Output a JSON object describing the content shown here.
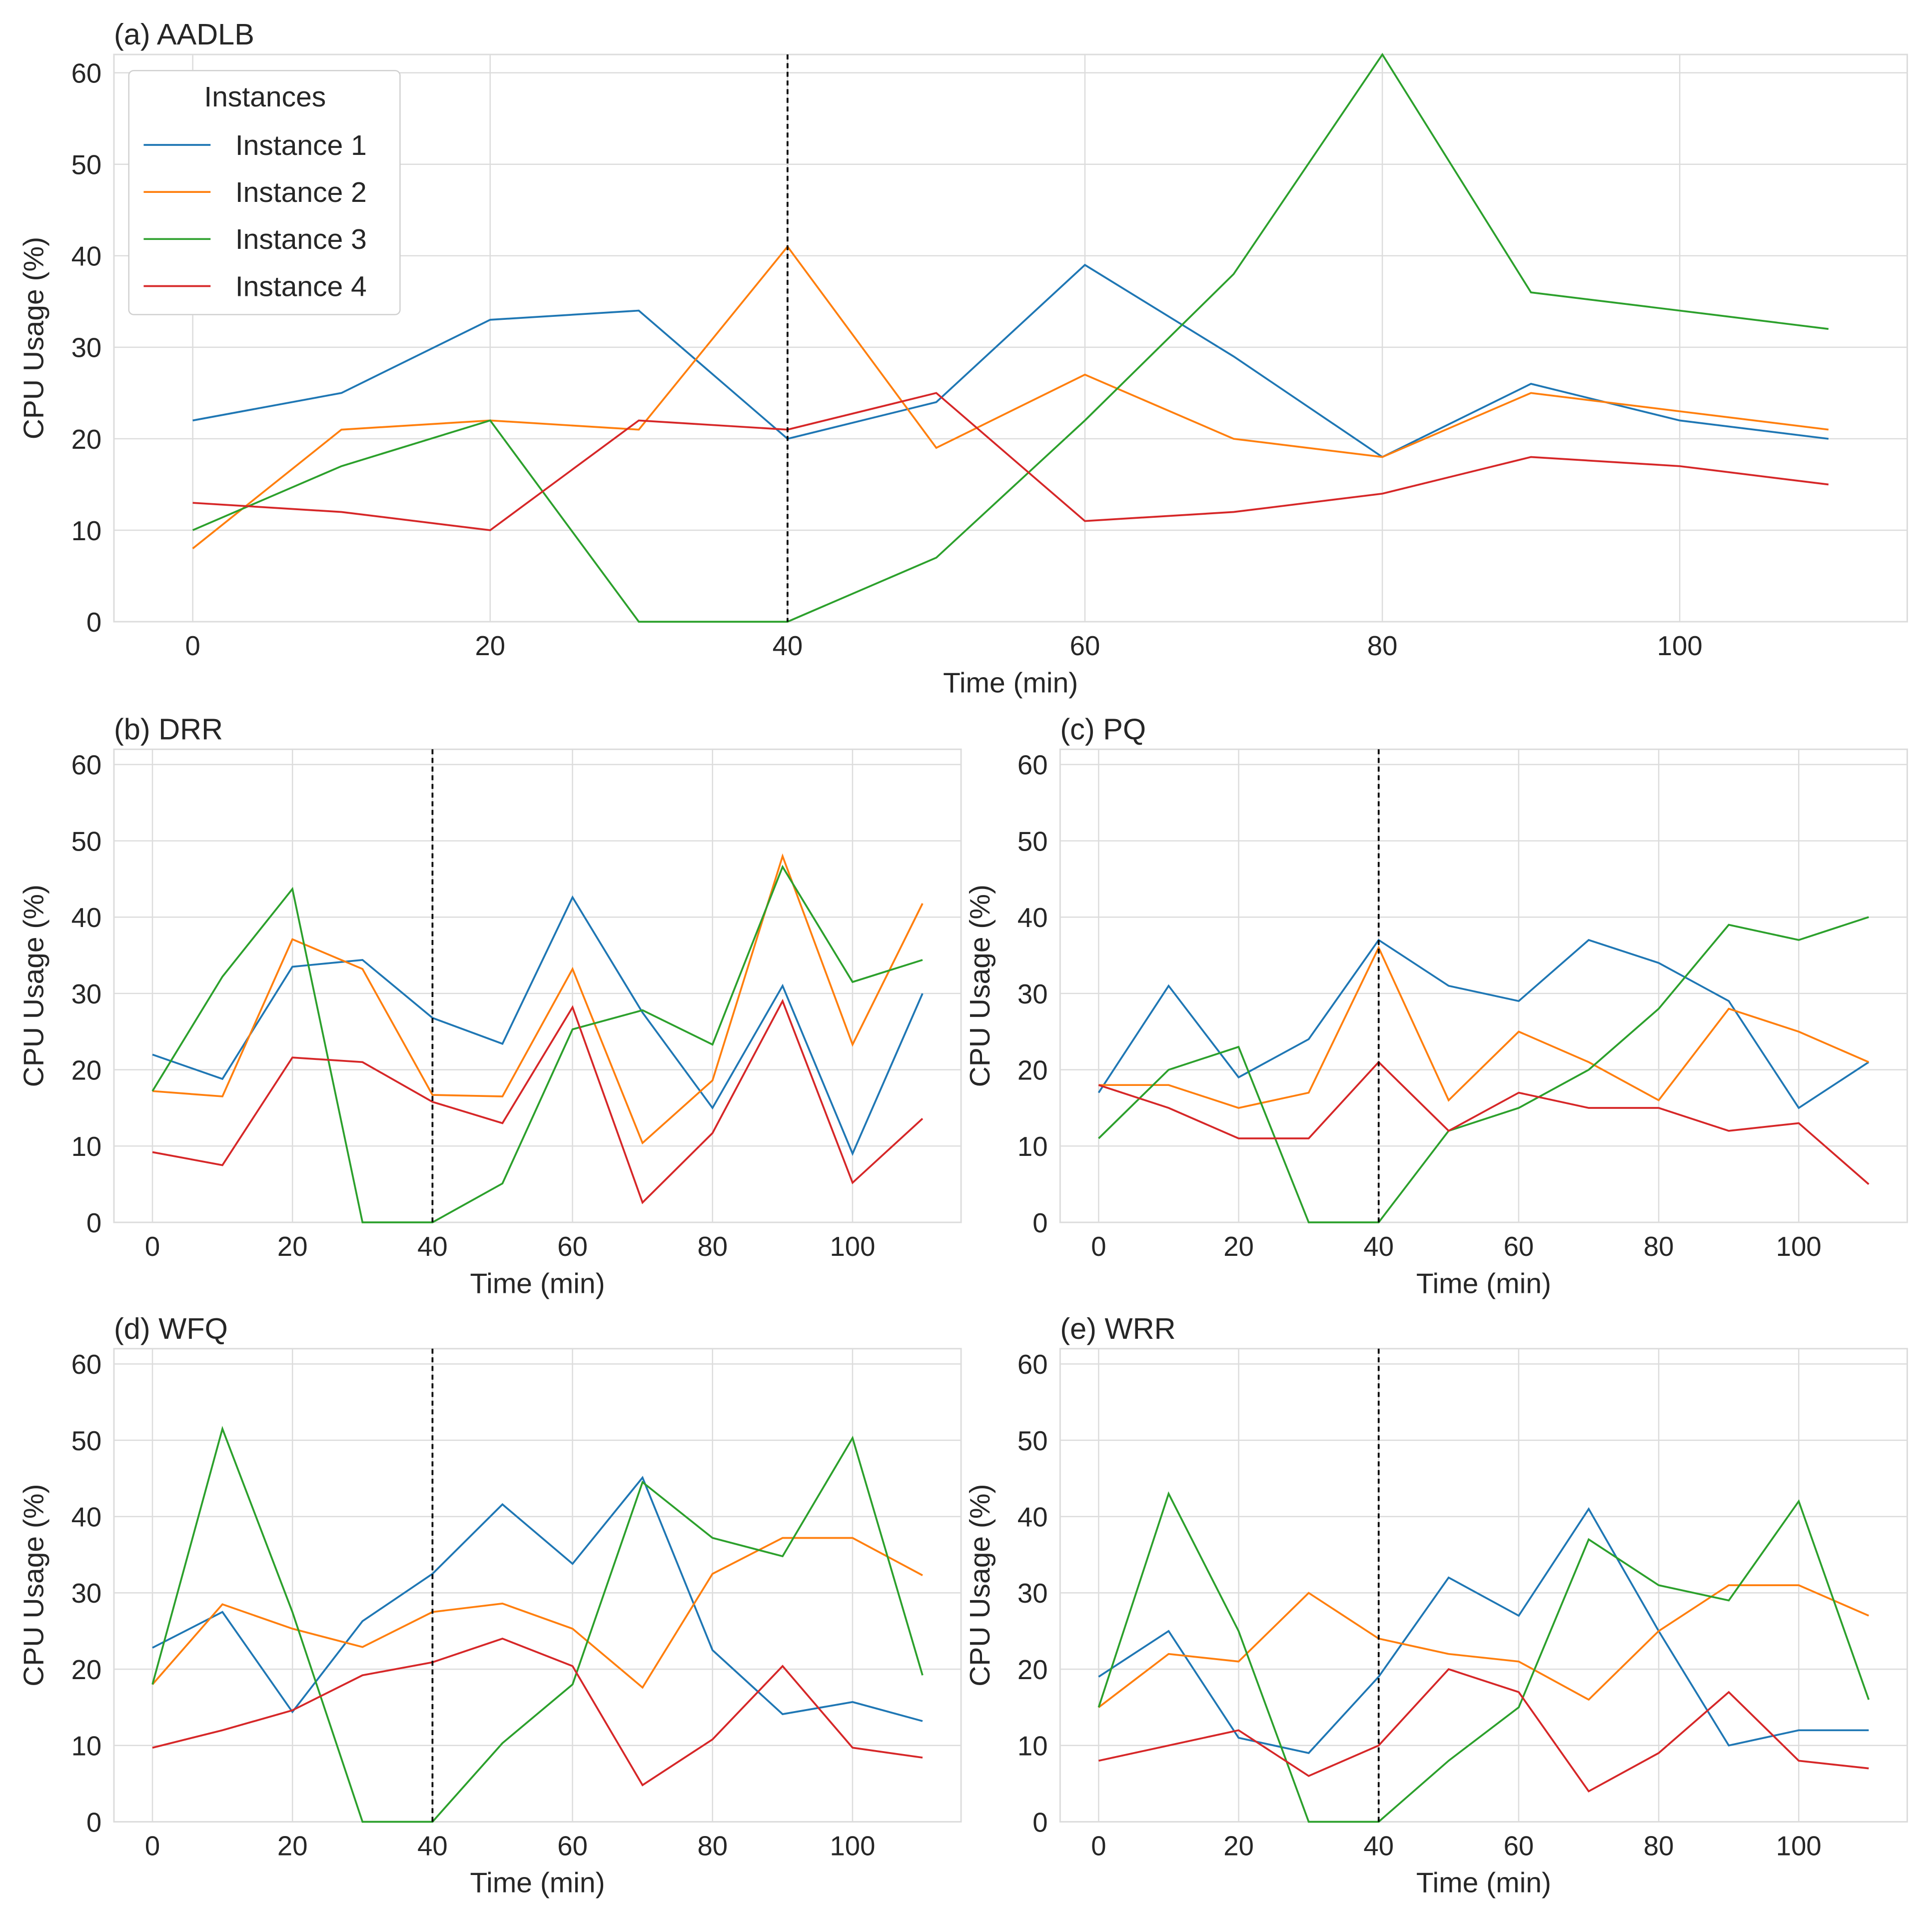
{
  "colors": {
    "Instance 1": "#1f77b4",
    "Instance 2": "#ff7f0e",
    "Instance 3": "#2ca02c",
    "Instance 4": "#d62728",
    "grid": "#dcdcdc",
    "marker": "#000000"
  },
  "legend": {
    "title": "Instances",
    "placement": "top-left",
    "entries": [
      "Instance 1",
      "Instance 2",
      "Instance 3",
      "Instance 4"
    ]
  },
  "chart_data": [
    {
      "type": "line",
      "title": "(a) AADLB",
      "xlabel": "Time (min)",
      "ylabel": "CPU Usage (%)",
      "xlim": [
        -5.3,
        115.3
      ],
      "ylim": [
        0,
        62
      ],
      "xticks": [
        0,
        20,
        40,
        60,
        80,
        100
      ],
      "yticks": [
        0,
        10,
        20,
        30,
        40,
        50,
        60
      ],
      "grid": true,
      "vline": 40,
      "x": [
        0,
        10,
        20,
        30,
        40,
        50,
        60,
        70,
        80,
        90,
        100,
        110
      ],
      "series": [
        {
          "name": "Instance 1",
          "values": [
            22,
            25,
            33,
            34,
            20,
            24,
            39,
            29,
            18,
            26,
            22,
            20
          ]
        },
        {
          "name": "Instance 2",
          "values": [
            8,
            21,
            22,
            21,
            41,
            19,
            27,
            20,
            18,
            25,
            23,
            21
          ]
        },
        {
          "name": "Instance 3",
          "values": [
            10,
            17,
            22,
            0,
            0,
            7,
            22,
            38,
            62,
            36,
            34,
            32
          ]
        },
        {
          "name": "Instance 4",
          "values": [
            13,
            12,
            10,
            22,
            21,
            25,
            11,
            12,
            14,
            18,
            17,
            15
          ]
        }
      ]
    },
    {
      "type": "line",
      "title": "(b) DRR",
      "xlabel": "Time (min)",
      "ylabel": "CPU Usage (%)",
      "xlim": [
        -5.5,
        115.5
      ],
      "ylim": [
        0,
        62
      ],
      "xticks": [
        0,
        20,
        40,
        60,
        80,
        100
      ],
      "yticks": [
        0,
        10,
        20,
        30,
        40,
        50,
        60
      ],
      "grid": true,
      "vline": 40,
      "x": [
        0,
        10,
        20,
        30,
        40,
        50,
        60,
        70,
        80,
        90,
        100,
        110
      ],
      "series": [
        {
          "name": "Instance 1",
          "values": [
            22,
            18.8,
            33.5,
            34.4,
            26.8,
            23.4,
            42.6,
            27.5,
            15,
            31,
            9,
            30
          ]
        },
        {
          "name": "Instance 2",
          "values": [
            17.2,
            16.5,
            37.1,
            33.2,
            16.7,
            16.5,
            33.2,
            10.4,
            18.6,
            48,
            23.3,
            41.8
          ]
        },
        {
          "name": "Instance 3",
          "values": [
            17.2,
            32.2,
            43.7,
            0,
            0,
            5.1,
            25.3,
            27.8,
            23.3,
            46.6,
            31.5,
            34.4
          ]
        },
        {
          "name": "Instance 4",
          "values": [
            9.2,
            7.5,
            21.6,
            21,
            15.8,
            13,
            28.2,
            2.6,
            11.7,
            29,
            5.2,
            13.6
          ]
        }
      ]
    },
    {
      "type": "line",
      "title": "(c) PQ",
      "xlabel": "Time (min)",
      "ylabel": "CPU Usage (%)",
      "xlim": [
        -5.5,
        115.5
      ],
      "ylim": [
        0,
        62
      ],
      "xticks": [
        0,
        20,
        40,
        60,
        80,
        100
      ],
      "yticks": [
        0,
        10,
        20,
        30,
        40,
        50,
        60
      ],
      "grid": true,
      "vline": 40,
      "x": [
        0,
        10,
        20,
        30,
        40,
        50,
        60,
        70,
        80,
        90,
        100,
        110
      ],
      "series": [
        {
          "name": "Instance 1",
          "values": [
            17,
            31,
            19,
            24,
            37,
            31,
            29,
            37,
            34,
            29,
            15,
            21
          ]
        },
        {
          "name": "Instance 2",
          "values": [
            18,
            18,
            15,
            17,
            36,
            16,
            25,
            21,
            16,
            28,
            25,
            21
          ]
        },
        {
          "name": "Instance 3",
          "values": [
            11,
            20,
            23,
            0,
            0,
            12,
            15,
            20,
            28,
            39,
            37,
            40
          ]
        },
        {
          "name": "Instance 4",
          "values": [
            18,
            15,
            11,
            11,
            21,
            12,
            17,
            15,
            15,
            12,
            13,
            5
          ]
        }
      ]
    },
    {
      "type": "line",
      "title": "(d) WFQ",
      "xlabel": "Time (min)",
      "ylabel": "CPU Usage (%)",
      "xlim": [
        -5.5,
        115.5
      ],
      "ylim": [
        0,
        62
      ],
      "xticks": [
        0,
        20,
        40,
        60,
        80,
        100
      ],
      "yticks": [
        0,
        10,
        20,
        30,
        40,
        50,
        60
      ],
      "grid": true,
      "vline": 40,
      "x": [
        0,
        10,
        20,
        30,
        40,
        50,
        60,
        70,
        80,
        90,
        100,
        110
      ],
      "series": [
        {
          "name": "Instance 1",
          "values": [
            22.8,
            27.5,
            14.4,
            26.3,
            32.5,
            41.6,
            33.8,
            45.1,
            22.5,
            14.1,
            15.7,
            13.2
          ]
        },
        {
          "name": "Instance 2",
          "values": [
            18,
            28.5,
            25.3,
            22.9,
            27.5,
            28.6,
            25.3,
            17.6,
            32.5,
            37.2,
            37.2,
            32.3
          ]
        },
        {
          "name": "Instance 3",
          "values": [
            18,
            51.5,
            27.5,
            0,
            0,
            10.3,
            18,
            44.5,
            37.2,
            34.8,
            50.3,
            19.2
          ]
        },
        {
          "name": "Instance 4",
          "values": [
            9.7,
            12,
            14.6,
            19.2,
            20.9,
            24,
            20.4,
            4.8,
            10.8,
            20.4,
            9.7,
            8.4
          ]
        }
      ]
    },
    {
      "type": "line",
      "title": "(e) WRR",
      "xlabel": "Time (min)",
      "ylabel": "CPU Usage (%)",
      "xlim": [
        -5.5,
        115.5
      ],
      "ylim": [
        0,
        62
      ],
      "xticks": [
        0,
        20,
        40,
        60,
        80,
        100
      ],
      "yticks": [
        0,
        10,
        20,
        30,
        40,
        50,
        60
      ],
      "grid": true,
      "vline": 40,
      "x": [
        0,
        10,
        20,
        30,
        40,
        50,
        60,
        70,
        80,
        90,
        100,
        110
      ],
      "series": [
        {
          "name": "Instance 1",
          "values": [
            19,
            25,
            11,
            9,
            19,
            32,
            27,
            41,
            25,
            10,
            12,
            12
          ]
        },
        {
          "name": "Instance 2",
          "values": [
            15,
            22,
            21,
            30,
            24,
            22,
            21,
            16,
            25,
            31,
            31,
            27
          ]
        },
        {
          "name": "Instance 3",
          "values": [
            15,
            43,
            25,
            0,
            0,
            8,
            15,
            37,
            31,
            29,
            42,
            16
          ]
        },
        {
          "name": "Instance 4",
          "values": [
            8,
            10,
            12,
            6,
            10,
            20,
            17,
            4,
            9,
            17,
            8,
            7
          ]
        }
      ]
    }
  ]
}
